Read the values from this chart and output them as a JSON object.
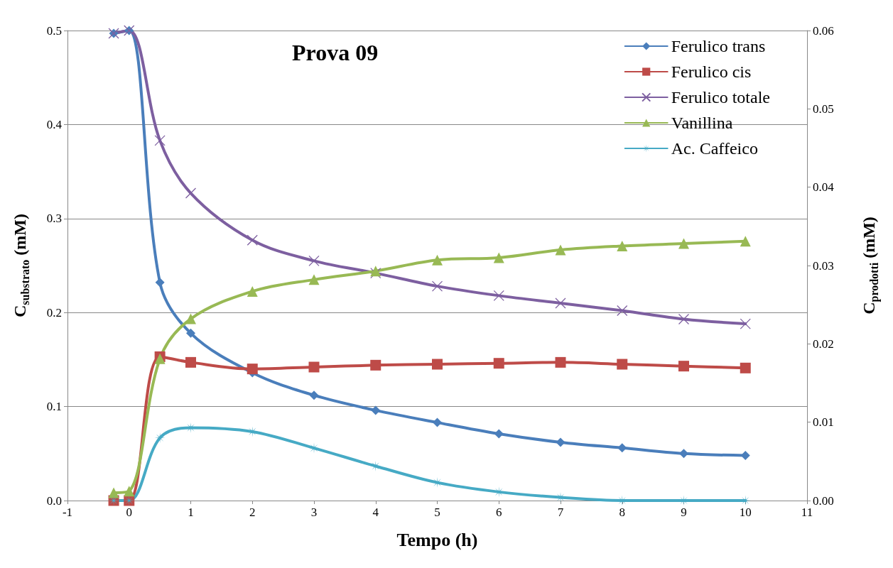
{
  "chart_data": {
    "type": "line",
    "title": "Prova 09",
    "xlabel": "Tempo (h)",
    "ylabel": "C$_{substrato}$ (mM)",
    "y2label": "C$_{prodotti}$ (mM)",
    "x": [
      -0.25,
      0,
      0.5,
      1,
      2,
      3,
      4,
      5,
      6,
      7,
      8,
      9,
      10
    ],
    "series": [
      {
        "name": "Ferulico trans",
        "color": "#4a7ebb",
        "marker": "diamond",
        "values": [
          0.497,
          0.5,
          0.232,
          0.178,
          0.136,
          0.112,
          0.096,
          0.083,
          0.071,
          0.062,
          0.056,
          0.05,
          0.048
        ]
      },
      {
        "name": "Ferulico cis",
        "color": "#be4b48",
        "marker": "square",
        "values": [
          0.0,
          0.0,
          0.153,
          0.147,
          0.14,
          0.142,
          0.144,
          0.145,
          0.146,
          0.147,
          0.145,
          0.143,
          0.141
        ]
      },
      {
        "name": "Ferulico totale",
        "color": "#7d5fa0",
        "marker": "cross",
        "values": [
          0.497,
          0.5,
          0.383,
          0.327,
          0.277,
          0.255,
          0.242,
          0.228,
          0.218,
          0.21,
          0.202,
          0.193,
          0.188
        ]
      },
      {
        "name": "Vanillina",
        "color": "#98b954",
        "marker": "triangle",
        "axis": "y2",
        "values": [
          0.001,
          0.0012,
          0.0181,
          0.0232,
          0.0267,
          0.0282,
          0.0293,
          0.0307,
          0.031,
          0.032,
          0.0325,
          0.0328,
          0.0331
        ]
      },
      {
        "name": "Ac. Caffeico",
        "color": "#46aac5",
        "marker": "star",
        "axis": "y2",
        "values": [
          0,
          0,
          0.008,
          0.0093,
          0.0088,
          0.0067,
          0.0044,
          0.0023,
          0.0011,
          0.0004,
          0,
          0,
          0
        ]
      }
    ],
    "xlim": [
      -1,
      11
    ],
    "xticks": [
      -1,
      0,
      1,
      2,
      3,
      4,
      5,
      6,
      7,
      8,
      9,
      10,
      11
    ],
    "ylim": [
      0,
      0.5
    ],
    "yticks": [
      {
        "value": 0,
        "label": "0.0"
      },
      0.1,
      0.2,
      0.3,
      0.4,
      0.5
    ],
    "y2lim": [
      0,
      0.06
    ],
    "y2ticks": [
      {
        "value": 0,
        "label": "0.00"
      },
      0.01,
      0.02,
      0.03,
      0.04,
      0.05,
      0.06
    ],
    "grid": "y",
    "legend": "top right",
    "line_style": "solid"
  }
}
